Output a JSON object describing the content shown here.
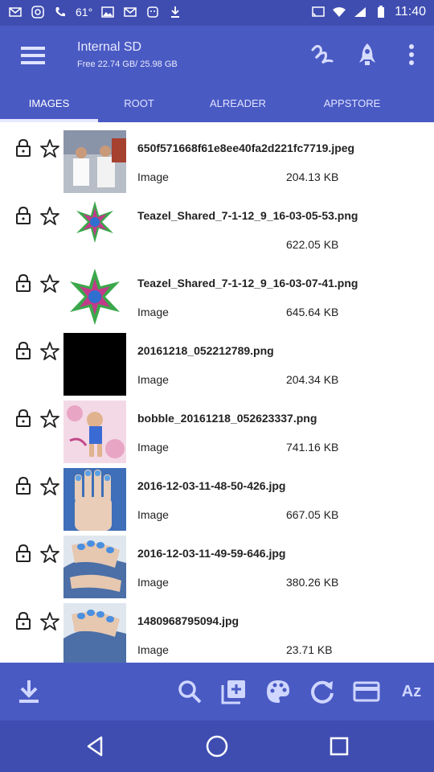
{
  "status_bar": {
    "battery": "61°",
    "time": "11:40",
    "left_icons": [
      "mail-icon",
      "instagram-icon",
      "phone-icon",
      "temp-icon",
      "photo-icon",
      "mail-icon",
      "app-icon",
      "download-icon"
    ],
    "right_icons": [
      "cast-icon",
      "wifi-icon",
      "signal-icon",
      "battery-icon"
    ]
  },
  "app_bar": {
    "title": "Internal SD",
    "subtitle": "Free 22.74 GB/ 25.98 GB",
    "actions": [
      "signature-icon",
      "rocket-icon",
      "more-vert-icon"
    ]
  },
  "tabs": [
    {
      "label": "IMAGES",
      "active": true
    },
    {
      "label": "ROOT",
      "active": false
    },
    {
      "label": "ALREADER",
      "active": false
    },
    {
      "label": "APPSTORE",
      "active": false
    }
  ],
  "files": [
    {
      "name": "650f571668f61e8ee40fa2d221fc7719.jpeg",
      "type": "Image",
      "size": "204.13 KB",
      "thumb": "people"
    },
    {
      "name": "Teazel_Shared_7-1-12_9_16-03-05-53.png",
      "type": "",
      "size": "622.05 KB",
      "thumb": "mandala"
    },
    {
      "name": "Teazel_Shared_7-1-12_9_16-03-07-41.png",
      "type": "Image",
      "size": "645.64 KB",
      "thumb": "mandala"
    },
    {
      "name": "20161218_052212789.png",
      "type": "Image",
      "size": "204.34 KB",
      "thumb": "black"
    },
    {
      "name": "bobble_20161218_052623337.png",
      "type": "Image",
      "size": "741.16 KB",
      "thumb": "bobble"
    },
    {
      "name": "2016-12-03-11-48-50-426.jpg",
      "type": "Image",
      "size": "667.05 KB",
      "thumb": "hand"
    },
    {
      "name": "2016-12-03-11-49-59-646.jpg",
      "type": "Image",
      "size": "380.26 KB",
      "thumb": "nails"
    },
    {
      "name": "1480968795094.jpg",
      "type": "Image",
      "size": "23.71 KB",
      "thumb": "nails"
    }
  ],
  "bottom_toolbar": {
    "items": [
      "download-icon",
      "search-icon",
      "add-copy-icon",
      "palette-icon",
      "refresh-icon",
      "card-icon",
      "sort-az-icon"
    ],
    "sort_label": "Az"
  },
  "nav_bar": [
    "back-icon",
    "home-icon",
    "recents-icon"
  ],
  "colors": {
    "primary": "#4a5ac3",
    "primary_dark": "#3f4db1",
    "accent_tab": "#e6e9ff"
  }
}
